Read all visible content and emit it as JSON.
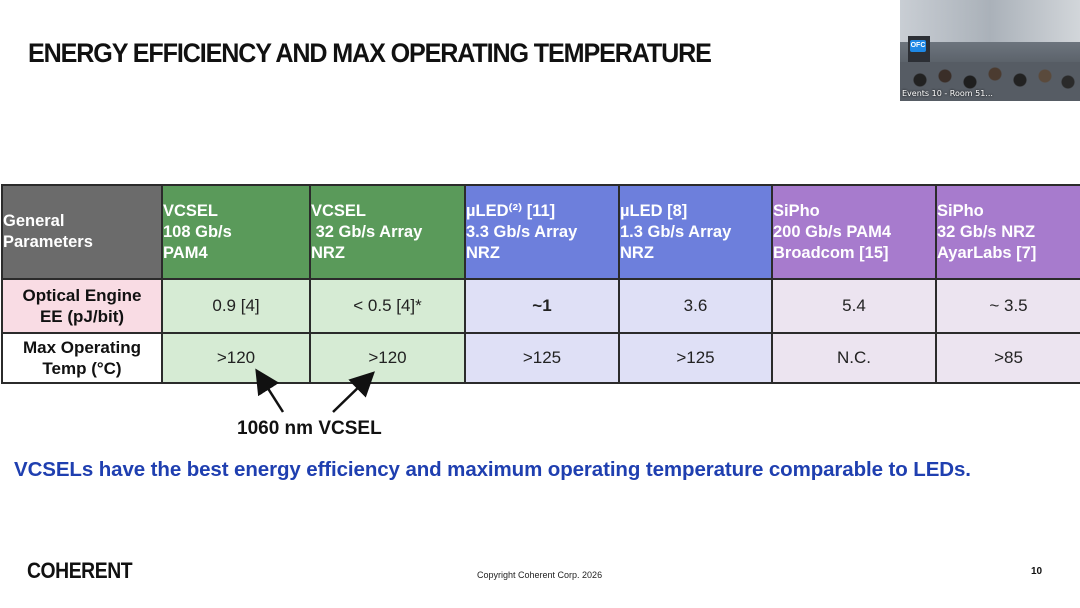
{
  "slide": {
    "title": "ENERGY EFFICIENCY AND MAX OPERATING TEMPERATURE",
    "annotation": "1060 nm VCSEL",
    "statement": "VCSELs have the best energy efficiency and maximum operating temperature comparable to LEDs.",
    "brand": "COHERENT",
    "copyright": "Copyright Coherent Corp. 2026",
    "page_number": "10"
  },
  "video": {
    "caption": "Events 10 - Room 51...",
    "logo_text": "OFC"
  },
  "table": {
    "headers": [
      [
        "General",
        "Parameters"
      ],
      [
        "VCSEL",
        "108 Gb/s",
        "PAM4"
      ],
      [
        "VCSEL",
        " 32 Gb/s Array",
        "NRZ"
      ],
      [
        "µLED⁽²⁾ [11]",
        "3.3 Gb/s Array",
        "NRZ"
      ],
      [
        "µLED [8]",
        "1.3 Gb/s Array",
        "NRZ"
      ],
      [
        "SiPho",
        "200 Gb/s PAM4",
        "Broadcom [15]"
      ],
      [
        "SiPho",
        "32 Gb/s NRZ",
        "AyarLabs [7]"
      ]
    ],
    "rows": [
      {
        "label": [
          "Optical Engine",
          "EE (pJ/bit)"
        ],
        "values": [
          "0.9 [4]",
          "< 0.5 [4]*",
          "~1",
          "3.6",
          "5.4",
          "~ 3.5"
        ]
      },
      {
        "label": [
          "Max Operating",
          "Temp (°C)"
        ],
        "values": [
          ">120",
          ">120",
          ">125",
          ">125",
          "N.C.",
          ">85"
        ]
      }
    ]
  },
  "colors": {
    "vcsel_header": "#5a9a5a",
    "led_header": "#6d7fdc",
    "sipho_header": "#a77bcd",
    "general_header": "#6b6b6b",
    "statement_text": "#1f3fb0",
    "highlight_row_label": "#f9dce4"
  }
}
